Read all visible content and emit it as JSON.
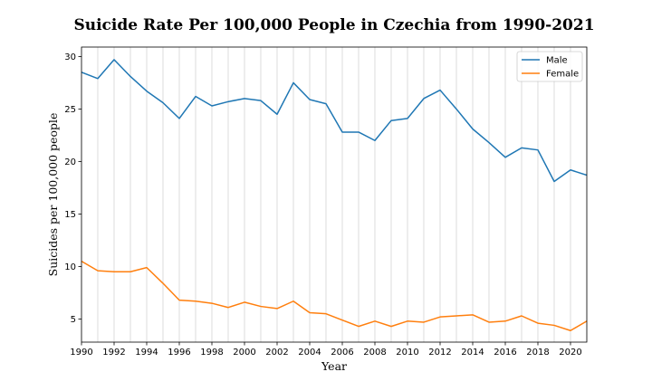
{
  "chart_data": {
    "type": "line",
    "title": "Suicide Rate Per 100,000 People in Czechia from 1990-2021",
    "xlabel": "Year",
    "ylabel": "Suicides per 100,000 people",
    "xlim": [
      1990,
      2021
    ],
    "ylim": [
      2.8,
      30.9
    ],
    "x_ticks": [
      1990,
      1992,
      1994,
      1996,
      1998,
      2000,
      2002,
      2004,
      2006,
      2008,
      2010,
      2012,
      2014,
      2016,
      2018,
      2020
    ],
    "y_ticks": [
      5,
      10,
      15,
      20,
      25,
      30
    ],
    "grid": "vertical lines at every year",
    "legend_position": "top-right",
    "x": [
      1990,
      1991,
      1992,
      1993,
      1994,
      1995,
      1996,
      1997,
      1998,
      1999,
      2000,
      2001,
      2002,
      2003,
      2004,
      2005,
      2006,
      2007,
      2008,
      2009,
      2010,
      2011,
      2012,
      2013,
      2014,
      2015,
      2016,
      2017,
      2018,
      2019,
      2020,
      2021
    ],
    "series": [
      {
        "name": "Male",
        "color": "#1f77b4",
        "values": [
          28.5,
          27.9,
          29.7,
          28.1,
          26.7,
          25.6,
          24.1,
          26.2,
          25.3,
          25.7,
          26.0,
          25.8,
          24.5,
          27.5,
          25.9,
          25.5,
          22.8,
          22.8,
          22.0,
          23.9,
          24.1,
          26.0,
          26.8,
          25.0,
          23.1,
          21.8,
          20.4,
          21.3,
          21.1,
          18.1,
          19.2,
          18.7
        ]
      },
      {
        "name": "Female",
        "color": "#ff7f0e",
        "values": [
          10.5,
          9.6,
          9.5,
          9.5,
          9.9,
          8.4,
          6.8,
          6.7,
          6.5,
          6.1,
          6.6,
          6.2,
          6.0,
          6.7,
          5.6,
          5.5,
          4.9,
          4.3,
          4.8,
          4.3,
          4.8,
          4.7,
          5.2,
          5.3,
          5.4,
          4.7,
          4.8,
          5.3,
          4.6,
          4.4,
          3.9,
          4.8
        ]
      }
    ]
  }
}
